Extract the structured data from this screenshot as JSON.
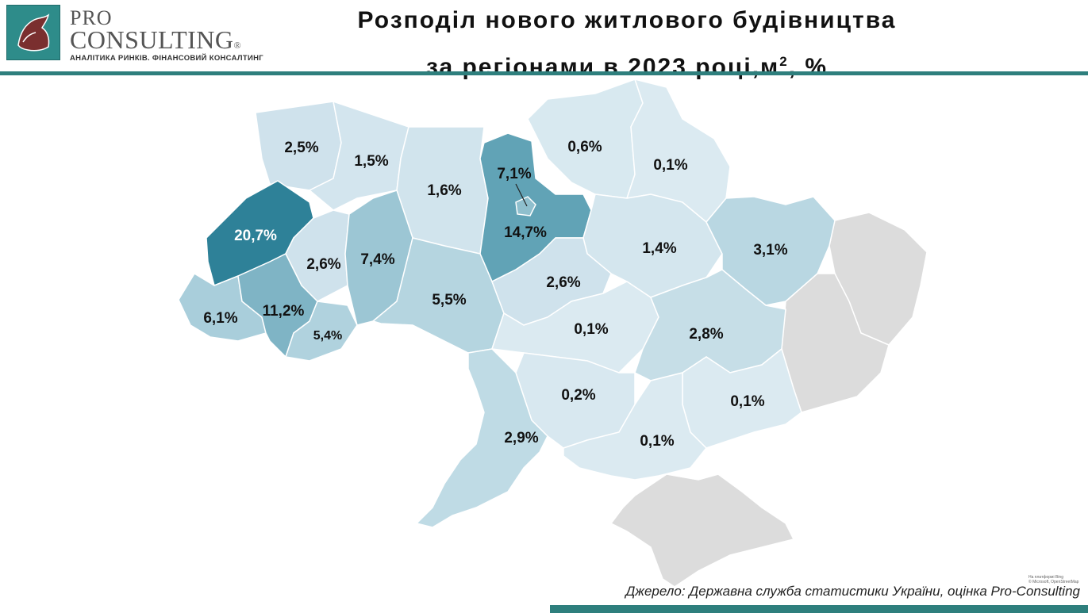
{
  "logo": {
    "pro": "PRO",
    "consulting": "CONSULTING",
    "registered": "®",
    "tagline": "АНАЛІТИКА РИНКІВ. ФІНАНСОВИЙ КОНСАЛТИНГ"
  },
  "title": {
    "line1": "Розподіл нового житлового будівництва",
    "line2_text": "за регіонами в 2023 році,м",
    "line2_sup": "2",
    "line2_tail": ", %"
  },
  "colors": {
    "accent": "#2e7f7d",
    "scale_low": "#dbe9f0",
    "scale_high": "#2e8198",
    "no_data": "#dcdcdc"
  },
  "regions": [
    {
      "id": "volyn",
      "value": "2,5%"
    },
    {
      "id": "rivne",
      "value": "1,5%"
    },
    {
      "id": "zhytomyr",
      "value": "1,6%"
    },
    {
      "id": "kyiv-city",
      "value": "7,1%"
    },
    {
      "id": "chernihiv",
      "value": "0,6%"
    },
    {
      "id": "sumy",
      "value": "0,1%"
    },
    {
      "id": "lviv",
      "value": "20,7%"
    },
    {
      "id": "kyiv-oblast",
      "value": "14,7%"
    },
    {
      "id": "ternopil",
      "value": "2,6%"
    },
    {
      "id": "khmelnytskyi",
      "value": "7,4%"
    },
    {
      "id": "poltava",
      "value": "1,4%"
    },
    {
      "id": "kharkiv",
      "value": "3,1%"
    },
    {
      "id": "zakarpattia",
      "value": "6,1%"
    },
    {
      "id": "ivano-frankivsk",
      "value": "11,2%"
    },
    {
      "id": "chernivtsi",
      "value": "5,4%"
    },
    {
      "id": "vinnytsia",
      "value": "5,5%"
    },
    {
      "id": "cherkasy",
      "value": "2,6%"
    },
    {
      "id": "kirovohrad",
      "value": "0,1%"
    },
    {
      "id": "dnipropetrovsk",
      "value": "2,8%"
    },
    {
      "id": "mykolaiv",
      "value": "0,2%"
    },
    {
      "id": "zaporizhzhia",
      "value": "0,1%"
    },
    {
      "id": "odesa",
      "value": "2,9%"
    },
    {
      "id": "kherson",
      "value": "0,1%"
    }
  ],
  "source": "Джерело: Державна служба статистики України, оцінка Pro-Consulting",
  "credit": {
    "line1": "На платформі Bing",
    "line2": "© Microsoft, OpenStreetMap"
  }
}
